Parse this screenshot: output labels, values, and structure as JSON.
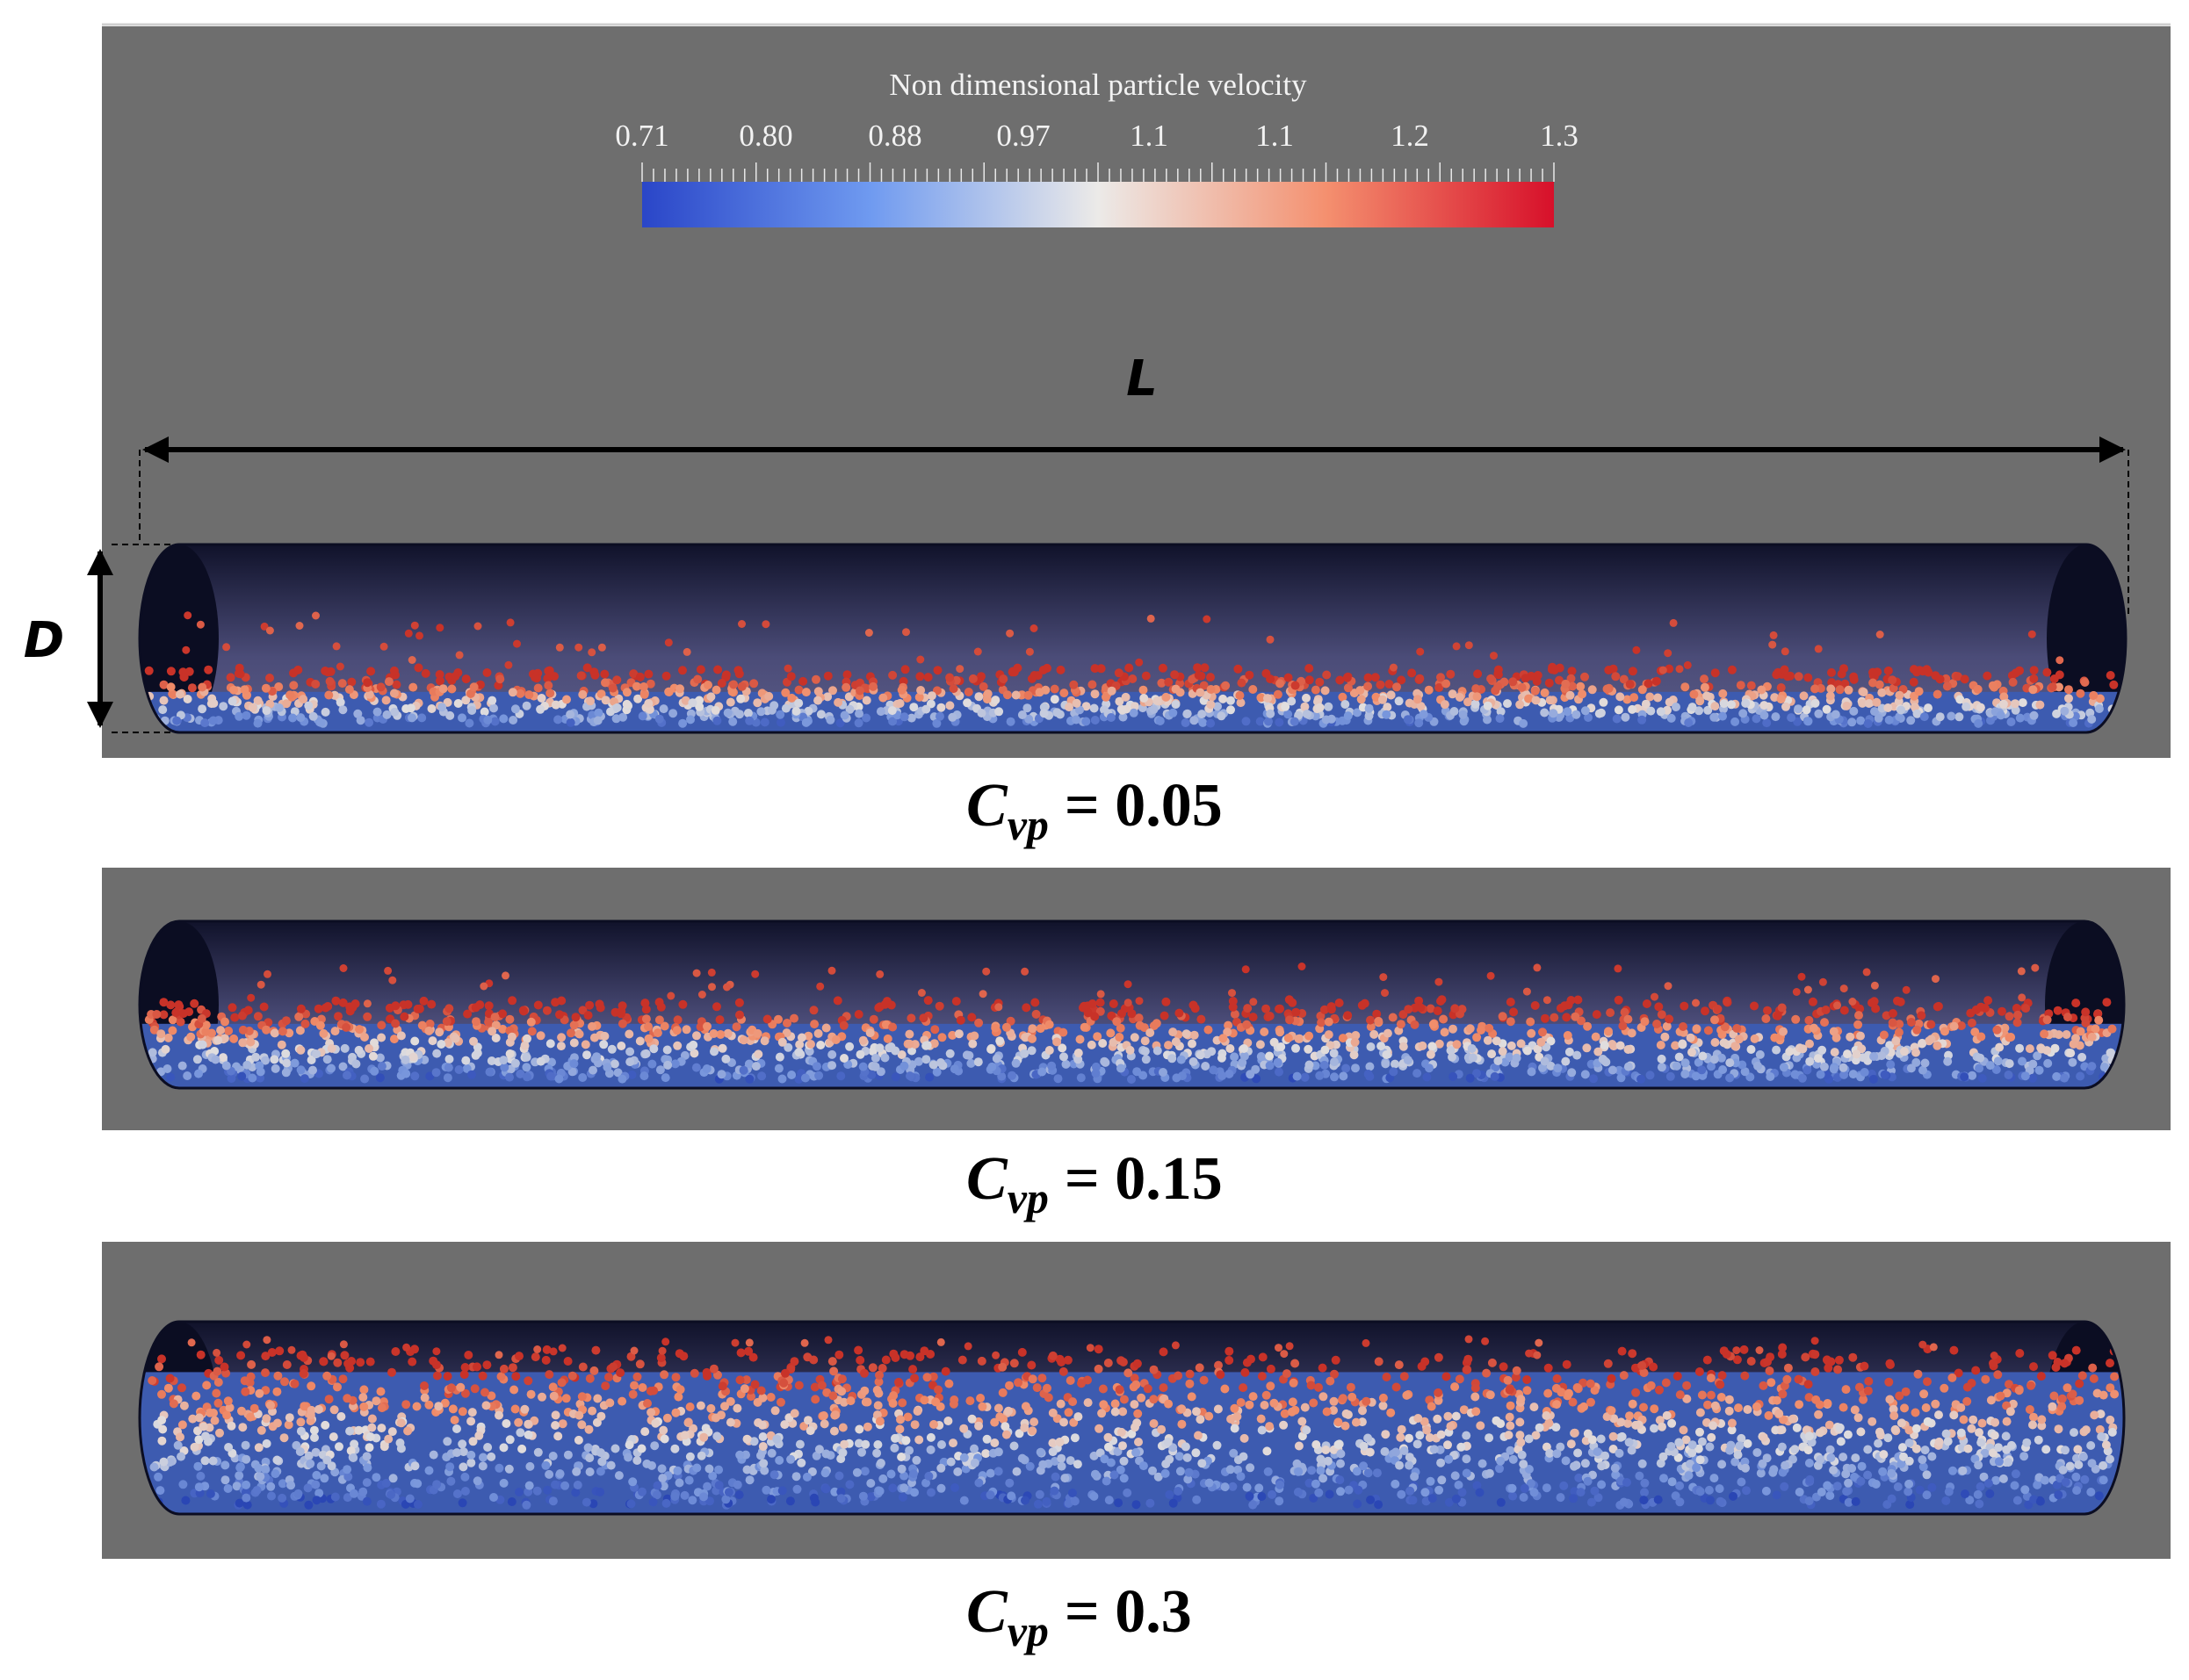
{
  "colorbar": {
    "title": "Non dimensional particle velocity",
    "tick_labels": [
      "0.71",
      "0.80",
      "0.88",
      "0.97",
      "1.1",
      "1.1",
      "1.2",
      "1.3"
    ]
  },
  "dimensions": {
    "length": "L",
    "diameter": "D"
  },
  "panels": [
    {
      "caption": {
        "symbol": "C",
        "subscript": "vp",
        "value": "= 0.05"
      }
    },
    {
      "caption": {
        "symbol": "C",
        "subscript": "vp",
        "value": "= 0.15"
      }
    },
    {
      "caption": {
        "symbol": "C",
        "subscript": "vp",
        "value": "= 0.3"
      }
    }
  ]
}
